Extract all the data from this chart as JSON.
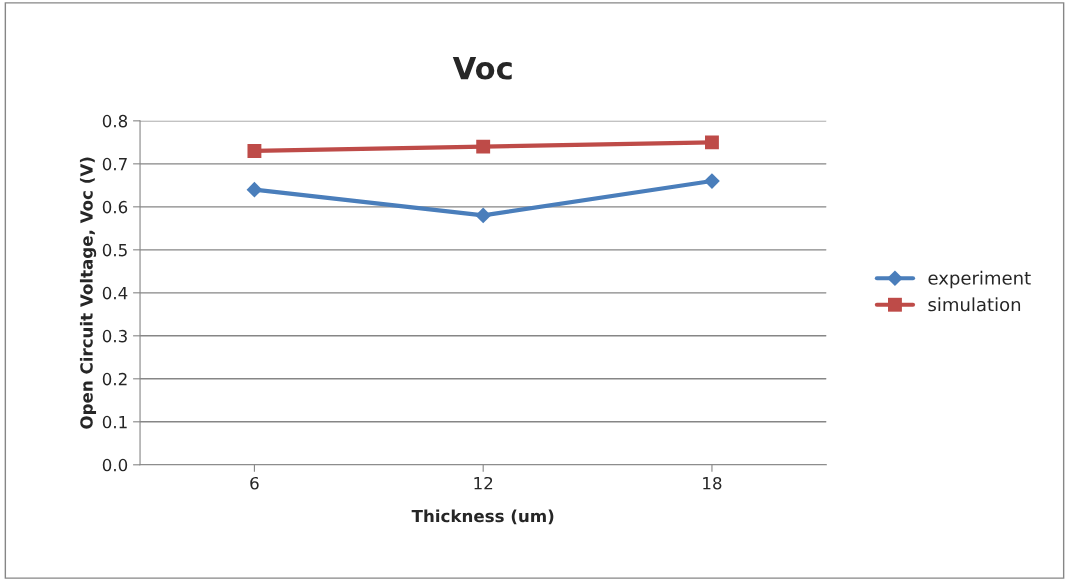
{
  "chart_data": {
    "type": "line",
    "title": "Voc",
    "xlabel": "Thickness (um)",
    "ylabel": "Open Circuit Voltage, Voc (V)",
    "categories": [
      "6",
      "12",
      "18"
    ],
    "series": [
      {
        "name": "experiment",
        "color": "#4a7ebb",
        "values": [
          0.64,
          0.58,
          0.66
        ],
        "marker": "diamond"
      },
      {
        "name": "simulation",
        "color": "#be4b48",
        "values": [
          0.73,
          0.74,
          0.75
        ],
        "marker": "square"
      }
    ],
    "ylim": [
      0,
      0.8
    ],
    "yticks": [
      {
        "value": 0,
        "label": "0.0"
      },
      0.1,
      0.2,
      0.3,
      0.4,
      0.5,
      0.6,
      0.7,
      0.8
    ],
    "grid": "y",
    "legend": "right",
    "line_style": "solid"
  }
}
